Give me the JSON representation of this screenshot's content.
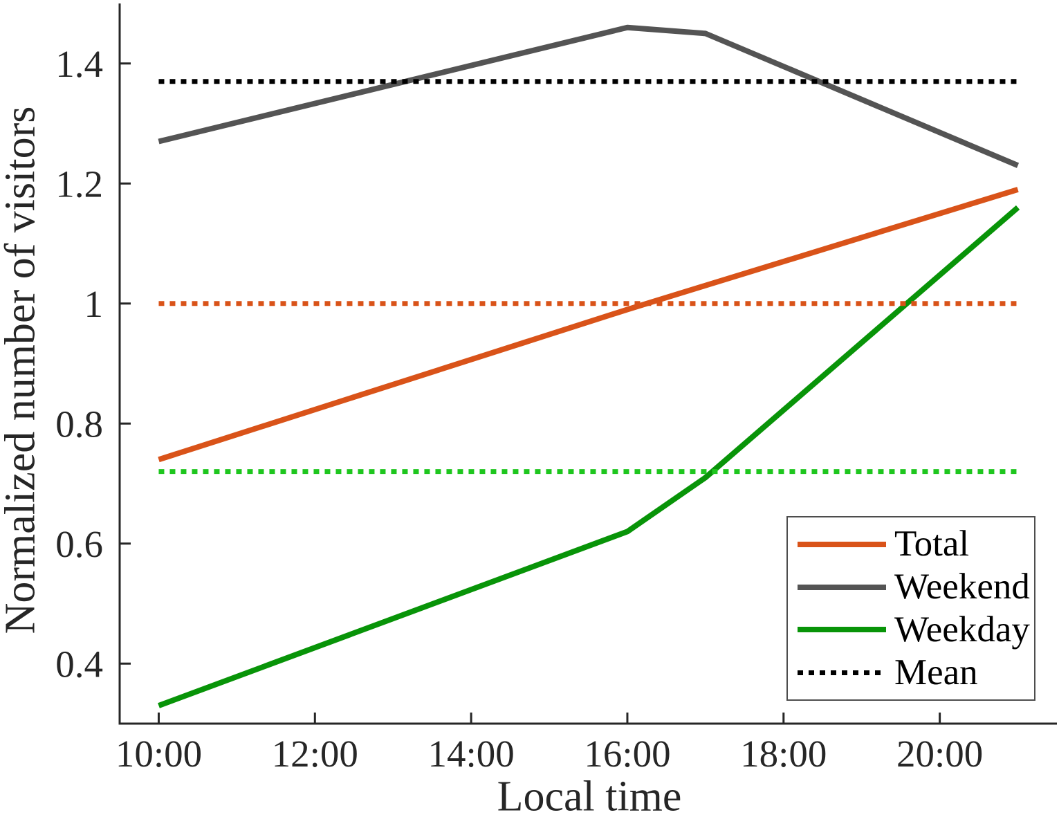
{
  "figure": {
    "background": "#FFFFFF",
    "axis_color": "#262626"
  },
  "chart_data": {
    "type": "line",
    "title": "",
    "xlabel": "Local time",
    "ylabel": "Normalized number of visitors",
    "xlim_hours": [
      9.5,
      21.5
    ],
    "ylim": [
      0.3,
      1.5
    ],
    "grid": false,
    "x_ticks": {
      "positions": [
        10,
        12,
        14,
        16,
        18,
        20
      ],
      "labels": [
        "10:00",
        "12:00",
        "14:00",
        "16:00",
        "18:00",
        "20:00"
      ]
    },
    "y_ticks": {
      "positions": [
        0.4,
        0.6,
        0.8,
        1.0,
        1.2,
        1.4
      ],
      "labels": [
        "0.4",
        "0.6",
        "0.8",
        "1",
        "1.2",
        "1.4"
      ]
    },
    "series": [
      {
        "name": "Total",
        "style": "solid",
        "color": "#D95319",
        "x_hours": [
          10,
          16,
          17,
          21
        ],
        "values": [
          0.74,
          0.99,
          1.03,
          1.19
        ]
      },
      {
        "name": "Weekend",
        "style": "solid",
        "color": "#545454",
        "x_hours": [
          10,
          16,
          17,
          21
        ],
        "values": [
          1.27,
          1.46,
          1.45,
          1.23
        ]
      },
      {
        "name": "Weekday",
        "style": "solid",
        "color": "#089408",
        "x_hours": [
          10,
          16,
          17,
          21
        ],
        "values": [
          0.33,
          0.62,
          0.71,
          1.16
        ]
      }
    ],
    "mean_lines": [
      {
        "name": "Total mean",
        "color": "#D95319",
        "value": 1.0,
        "x_hours": [
          10,
          21
        ]
      },
      {
        "name": "Weekend mean",
        "color": "#000000",
        "value": 1.37,
        "x_hours": [
          10,
          21
        ]
      },
      {
        "name": "Weekday mean",
        "color": "#1EC61E",
        "value": 0.72,
        "x_hours": [
          10,
          21
        ]
      }
    ],
    "legend": {
      "position": "lower right",
      "entries": [
        {
          "label": "Total",
          "color": "#D95319",
          "style": "solid"
        },
        {
          "label": "Weekend",
          "color": "#545454",
          "style": "solid"
        },
        {
          "label": "Weekday",
          "color": "#089408",
          "style": "solid"
        },
        {
          "label": "Mean",
          "color": "#000000",
          "style": "dotted"
        }
      ]
    }
  }
}
